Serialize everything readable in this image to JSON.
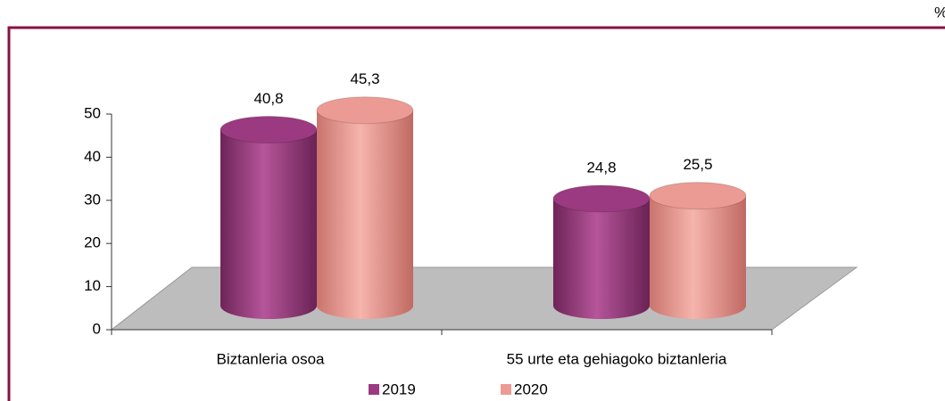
{
  "chart_data": {
    "type": "bar3d",
    "unit_label": "%",
    "categories": [
      "Biztanleria osoa",
      "55 urte eta gehiagoko biztanleria"
    ],
    "series": [
      {
        "name": "2019",
        "color": "#9b3a80",
        "values": [
          40.8,
          24.8
        ],
        "value_labels": [
          "40,8",
          "24,8"
        ]
      },
      {
        "name": "2020",
        "color": "#eb9b93",
        "values": [
          45.3,
          25.5
        ],
        "value_labels": [
          "45,3",
          "25,5"
        ]
      }
    ],
    "ylim": [
      0,
      50
    ],
    "yticks": [
      0,
      10,
      20,
      30,
      40,
      50
    ],
    "legend": "bottom"
  }
}
